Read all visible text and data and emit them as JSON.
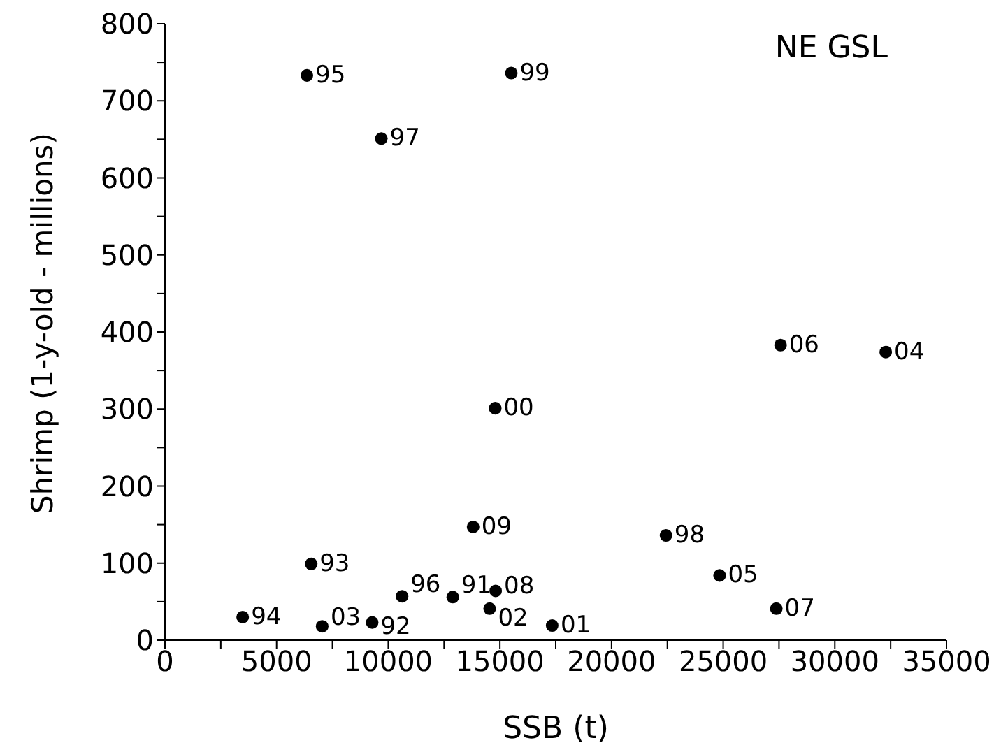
{
  "chart_data": {
    "type": "scatter",
    "xlabel": "SSB (t)",
    "ylabel": "Shrimp (1-y-old - millions)",
    "x": [
      6357,
      15510,
      9690,
      14790,
      13800,
      6550,
      10620,
      12890,
      14810,
      14540,
      3480,
      7040,
      9280,
      17340,
      22440,
      24840,
      27380,
      27570,
      32280
    ],
    "values": [
      733,
      736,
      651,
      301,
      147,
      99,
      57,
      56,
      64,
      41,
      30,
      18,
      23,
      19,
      136,
      84,
      41,
      383,
      374
    ],
    "color": "#000000",
    "marker": "circle",
    "grid": false,
    "legend": false,
    "xlim": [
      0,
      35000
    ],
    "xticks": [
      0,
      {
        "value": 2500,
        "label": null
      },
      5000,
      {
        "value": 7500,
        "label": null
      },
      10000,
      {
        "value": 12500,
        "label": null
      },
      15000,
      {
        "value": 17500,
        "label": null
      },
      20000,
      {
        "value": 22500,
        "label": null
      },
      25000,
      {
        "value": 27500,
        "label": null
      },
      30000,
      {
        "value": 32500,
        "label": null
      },
      35000
    ],
    "ylim": [
      0,
      800
    ],
    "yticks": [
      0,
      {
        "value": 50,
        "label": null
      },
      100,
      {
        "value": 150,
        "label": null
      },
      200,
      {
        "value": 250,
        "label": null
      },
      300,
      {
        "value": 350,
        "label": null
      },
      400,
      {
        "value": 450,
        "label": null
      },
      500,
      {
        "value": 550,
        "label": null
      },
      600,
      {
        "value": 650,
        "label": null
      },
      700,
      {
        "value": 750,
        "label": null
      },
      800
    ],
    "annotations": [
      {
        "text": "95",
        "x": 6357,
        "y": 733
      },
      {
        "text": "99",
        "x": 15510,
        "y": 736
      },
      {
        "text": "97",
        "x": 9690,
        "y": 651
      },
      {
        "text": "00",
        "x": 14790,
        "y": 301
      },
      {
        "text": "09",
        "x": 13800,
        "y": 147
      },
      {
        "text": "93",
        "x": 6550,
        "y": 99
      },
      {
        "text": "96",
        "x": 10620,
        "y": 57
      },
      {
        "text": "91",
        "x": 12890,
        "y": 56
      },
      {
        "text": "08",
        "x": 14810,
        "y": 64
      },
      {
        "text": "02",
        "x": 14540,
        "y": 41
      },
      {
        "text": "94",
        "x": 3480,
        "y": 30
      },
      {
        "text": "03",
        "x": 7040,
        "y": 18
      },
      {
        "text": "92",
        "x": 9280,
        "y": 23
      },
      {
        "text": "01",
        "x": 17340,
        "y": 19
      },
      {
        "text": "98",
        "x": 22440,
        "y": 136
      },
      {
        "text": "05",
        "x": 24840,
        "y": 84
      },
      {
        "text": "07",
        "x": 27380,
        "y": 41
      },
      {
        "text": "06",
        "x": 27570,
        "y": 383
      },
      {
        "text": "04",
        "x": 32280,
        "y": 374
      },
      "NE GSL"
    ]
  }
}
